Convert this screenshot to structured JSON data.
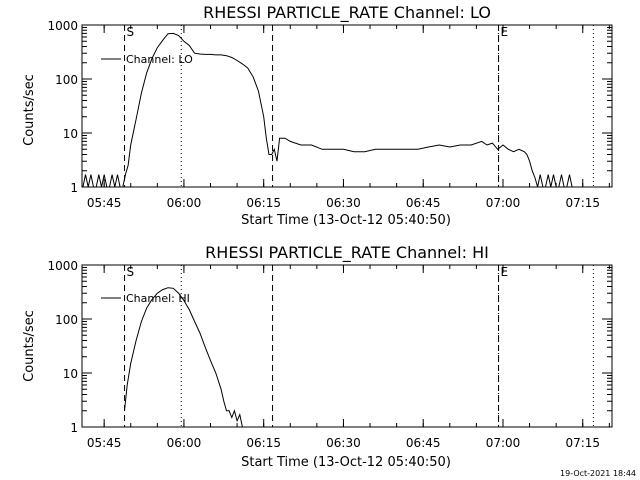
{
  "footer": {
    "timestamp": "19-Oct-2021 18:44"
  },
  "chart_data": [
    {
      "type": "line",
      "title": "RHESSI PARTICLE_RATE Channel: LO",
      "xlabel": "Start Time (13-Oct-12 05:40:50)",
      "ylabel": "Counts/sec",
      "y_scale": "log",
      "ylim": [
        1,
        1000
      ],
      "xlim": [
        "05:40:50",
        "07:20:30"
      ],
      "x_ticks": [
        "05:45",
        "06:00",
        "06:15",
        "06:30",
        "06:45",
        "07:00",
        "07:15"
      ],
      "y_ticks": [
        "1",
        "10",
        "100",
        "1000"
      ],
      "legend": {
        "label": "Channel: LO",
        "placement": "top-left"
      },
      "markers": {
        "dashed": [
          {
            "x": "05:48:50",
            "label": "S"
          },
          {
            "x": "06:16:40",
            "label": ""
          },
          {
            "x": "06:59:10",
            "label": "E"
          }
        ],
        "dotted": [
          "05:59:30",
          "06:59:10",
          "07:17:00"
        ]
      },
      "series": [
        {
          "x": [
            "05:41:00",
            "05:41:30",
            "05:42:00",
            "05:42:30",
            "05:43:00",
            "05:43:30",
            "05:44:00",
            "05:44:30",
            "05:45:00",
            "05:45:30",
            "05:46:00",
            "05:46:30",
            "05:47:00",
            "05:47:30",
            "05:48:00",
            "05:48:30",
            "05:49:00",
            "05:49:30",
            "05:50:00",
            "05:51:00",
            "05:52:00",
            "05:53:00",
            "05:54:00",
            "05:55:00",
            "05:56:00",
            "05:57:00",
            "05:58:00",
            "05:59:00",
            "06:00:00",
            "06:01:00",
            "06:02:00",
            "06:03:00",
            "06:04:00",
            "06:05:00",
            "06:06:00",
            "06:07:00",
            "06:08:00",
            "06:09:00",
            "06:10:00",
            "06:11:00",
            "06:12:00",
            "06:13:00",
            "06:14:00",
            "06:15:00",
            "06:15:30",
            "06:16:00",
            "06:16:30",
            "06:17:00",
            "06:17:30",
            "06:18:00",
            "06:18:30",
            "06:19:00",
            "06:20:00",
            "06:22:00",
            "06:24:00",
            "06:26:00",
            "06:28:00",
            "06:30:00",
            "06:32:00",
            "06:34:00",
            "06:36:00",
            "06:38:00",
            "06:40:00",
            "06:42:00",
            "06:44:00",
            "06:46:00",
            "06:48:00",
            "06:50:00",
            "06:52:00",
            "06:54:00",
            "06:56:00",
            "06:57:00",
            "06:58:00",
            "06:59:00",
            "07:00:00",
            "07:01:00",
            "07:02:00",
            "07:03:00",
            "07:04:00",
            "07:04:30",
            "07:05:00",
            "07:05:30",
            "07:06:00",
            "07:06:30",
            "07:07:00",
            "07:07:30",
            "07:08:00",
            "07:08:30",
            "07:09:00",
            "07:09:30",
            "07:10:00",
            "07:10:30",
            "07:11:00",
            "07:11:30",
            "07:12:00",
            "07:12:30",
            "07:13:00"
          ],
          "y": [
            1,
            1.7,
            1,
            1.7,
            1,
            1,
            1.7,
            1,
            1.7,
            1,
            1,
            1.7,
            1,
            1.7,
            1,
            1,
            1.7,
            2.5,
            6,
            18,
            55,
            130,
            240,
            380,
            520,
            690,
            700,
            640,
            500,
            420,
            300,
            290,
            285,
            285,
            280,
            280,
            270,
            250,
            220,
            190,
            160,
            110,
            60,
            20,
            8,
            4,
            4,
            5,
            3,
            8,
            8,
            8,
            7,
            6,
            6,
            5,
            5,
            5,
            4.5,
            4.5,
            5,
            5,
            5,
            5,
            5,
            5.5,
            6,
            5.5,
            6,
            6,
            7,
            6,
            6.5,
            5,
            6,
            5,
            4.5,
            5,
            4.5,
            4,
            3,
            2,
            1.5,
            1,
            1.7,
            1,
            1,
            1.7,
            1,
            1.7,
            1,
            1,
            1.7,
            1,
            1,
            1.7,
            1
          ]
        }
      ]
    },
    {
      "type": "line",
      "title": "RHESSI PARTICLE_RATE Channel: HI",
      "xlabel": "Start Time (13-Oct-12 05:40:50)",
      "ylabel": "Counts/sec",
      "y_scale": "log",
      "ylim": [
        1,
        1000
      ],
      "xlim": [
        "05:40:50",
        "07:20:30"
      ],
      "x_ticks": [
        "05:45",
        "06:00",
        "06:15",
        "06:30",
        "06:45",
        "07:00",
        "07:15"
      ],
      "y_ticks": [
        "1",
        "10",
        "100",
        "1000"
      ],
      "legend": {
        "label": "Channel: HI",
        "placement": "top-left"
      },
      "markers": {
        "dashed": [
          {
            "x": "05:48:50",
            "label": "S"
          },
          {
            "x": "06:16:40",
            "label": ""
          },
          {
            "x": "06:59:10",
            "label": "E"
          }
        ],
        "dotted": [
          "05:59:30",
          "06:59:10",
          "07:17:00"
        ]
      },
      "series": [
        {
          "x": [
            "05:48:50",
            "05:49:20",
            "05:50:00",
            "05:51:00",
            "05:52:00",
            "05:53:00",
            "05:54:00",
            "05:55:00",
            "05:56:00",
            "05:57:00",
            "05:58:00",
            "05:59:00",
            "06:00:00",
            "06:01:00",
            "06:02:00",
            "06:03:00",
            "06:04:00",
            "06:05:00",
            "06:06:00",
            "06:07:00",
            "06:07:30",
            "06:08:00",
            "06:08:30",
            "06:09:00",
            "06:09:30",
            "06:10:00",
            "06:10:30",
            "06:11:00"
          ],
          "y": [
            2,
            6,
            15,
            40,
            90,
            160,
            230,
            300,
            350,
            380,
            370,
            300,
            220,
            150,
            90,
            55,
            30,
            17,
            10,
            5,
            3,
            2,
            2,
            1.5,
            2,
            1.3,
            1.7,
            1
          ]
        }
      ]
    }
  ]
}
